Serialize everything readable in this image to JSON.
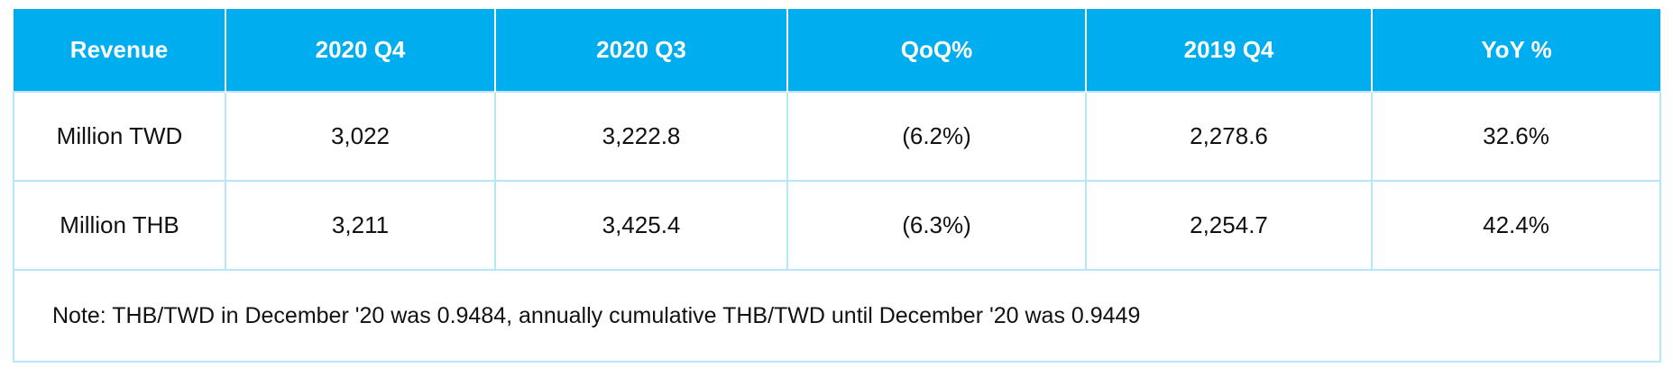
{
  "table": {
    "headers": [
      "Revenue",
      "2020 Q4",
      "2020 Q3",
      "QoQ%",
      "2019 Q4",
      "YoY %"
    ],
    "rows": [
      [
        "Million TWD",
        "3,022",
        "3,222.8",
        "(6.2%)",
        "2,278.6",
        "32.6%"
      ],
      [
        "Million THB",
        "3,211",
        "3,425.4",
        "(6.3%)",
        "2,254.7",
        "42.4%"
      ]
    ],
    "note": "Note: THB/TWD in December '20 was 0.9484, annually cumulative THB/TWD until December '20 was 0.9449"
  },
  "colors": {
    "header_bg": "#00aeef",
    "header_text": "#ffffff",
    "grid": "#b6e6f7"
  }
}
